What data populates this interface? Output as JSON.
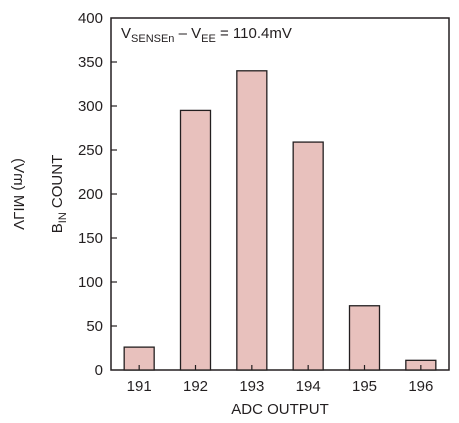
{
  "chart_data": {
    "type": "bar",
    "categories": [
      "191",
      "192",
      "193",
      "194",
      "195",
      "196"
    ],
    "values": [
      26,
      295,
      340,
      259,
      73,
      11
    ],
    "xlabel": "ADC OUTPUT",
    "ylabel": {
      "b_count": {
        "main": "B",
        "sub": "IN",
        "rest": " COUNT"
      },
      "vlim_mirrored": "VLIM (mV)"
    },
    "ylim": [
      0,
      400
    ],
    "yticks": [
      0,
      50,
      100,
      150,
      200,
      250,
      300,
      350,
      400
    ],
    "annotation": {
      "v1": "V",
      "v1_sub": "SENSEn",
      "dash": " – ",
      "v2": "V",
      "v2_sub": "EE",
      "rest": " = 110.4mV"
    },
    "grid": false,
    "legend": "none",
    "colors": {
      "bar_fill": "#e8c1bd",
      "bar_stroke": "#231f20",
      "axis": "#231f20"
    }
  }
}
